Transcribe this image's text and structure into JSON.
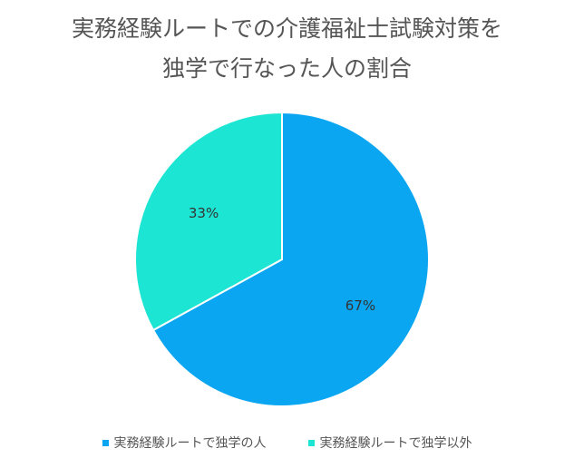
{
  "chart_data": {
    "type": "pie",
    "title_lines": [
      "実務経験ルートでの介護福祉士試験対策を",
      "独学で行なった人の割合"
    ],
    "slices": [
      {
        "label": "実務経験ルートで独学の人",
        "value": 67,
        "value_label": "67%",
        "color": "#0aa6f2"
      },
      {
        "label": "実務経験ルートで独学以外",
        "value": 33,
        "value_label": "33%",
        "color": "#1de5d3"
      }
    ],
    "legend_position": "bottom",
    "start_angle": "top, clockwise"
  }
}
